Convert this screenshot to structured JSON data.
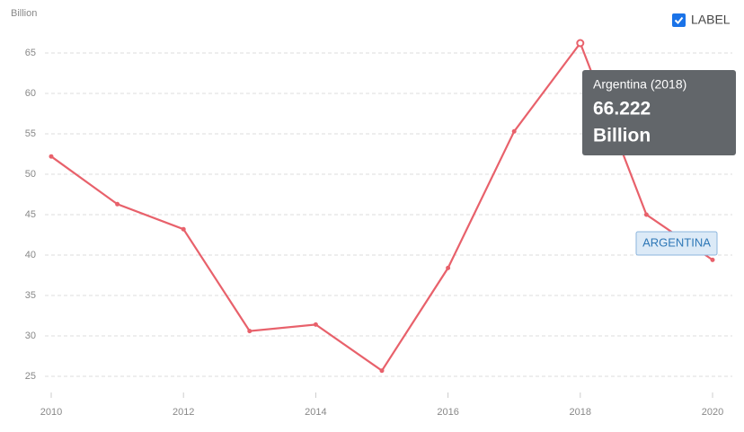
{
  "chart_data": {
    "type": "line",
    "y_label": "Billion",
    "legend_label": "LABEL",
    "x": [
      2010,
      2011,
      2012,
      2013,
      2014,
      2015,
      2016,
      2017,
      2018,
      2019,
      2020
    ],
    "series": [
      {
        "name": "ARGENTINA",
        "color": "#e8616b",
        "values": [
          52.2,
          46.3,
          43.2,
          30.6,
          31.4,
          25.7,
          38.4,
          55.3,
          66.222,
          45.0,
          39.4
        ]
      }
    ],
    "xlim": [
      2010,
      2020
    ],
    "xticks": [
      2010,
      2012,
      2014,
      2016,
      2018,
      2020
    ],
    "ylim": [
      23,
      67
    ],
    "yticks": [
      25,
      30,
      35,
      40,
      45,
      50,
      55,
      60,
      65
    ],
    "grid": true,
    "tooltip": {
      "title": "Argentina (2018)"
    }
  }
}
